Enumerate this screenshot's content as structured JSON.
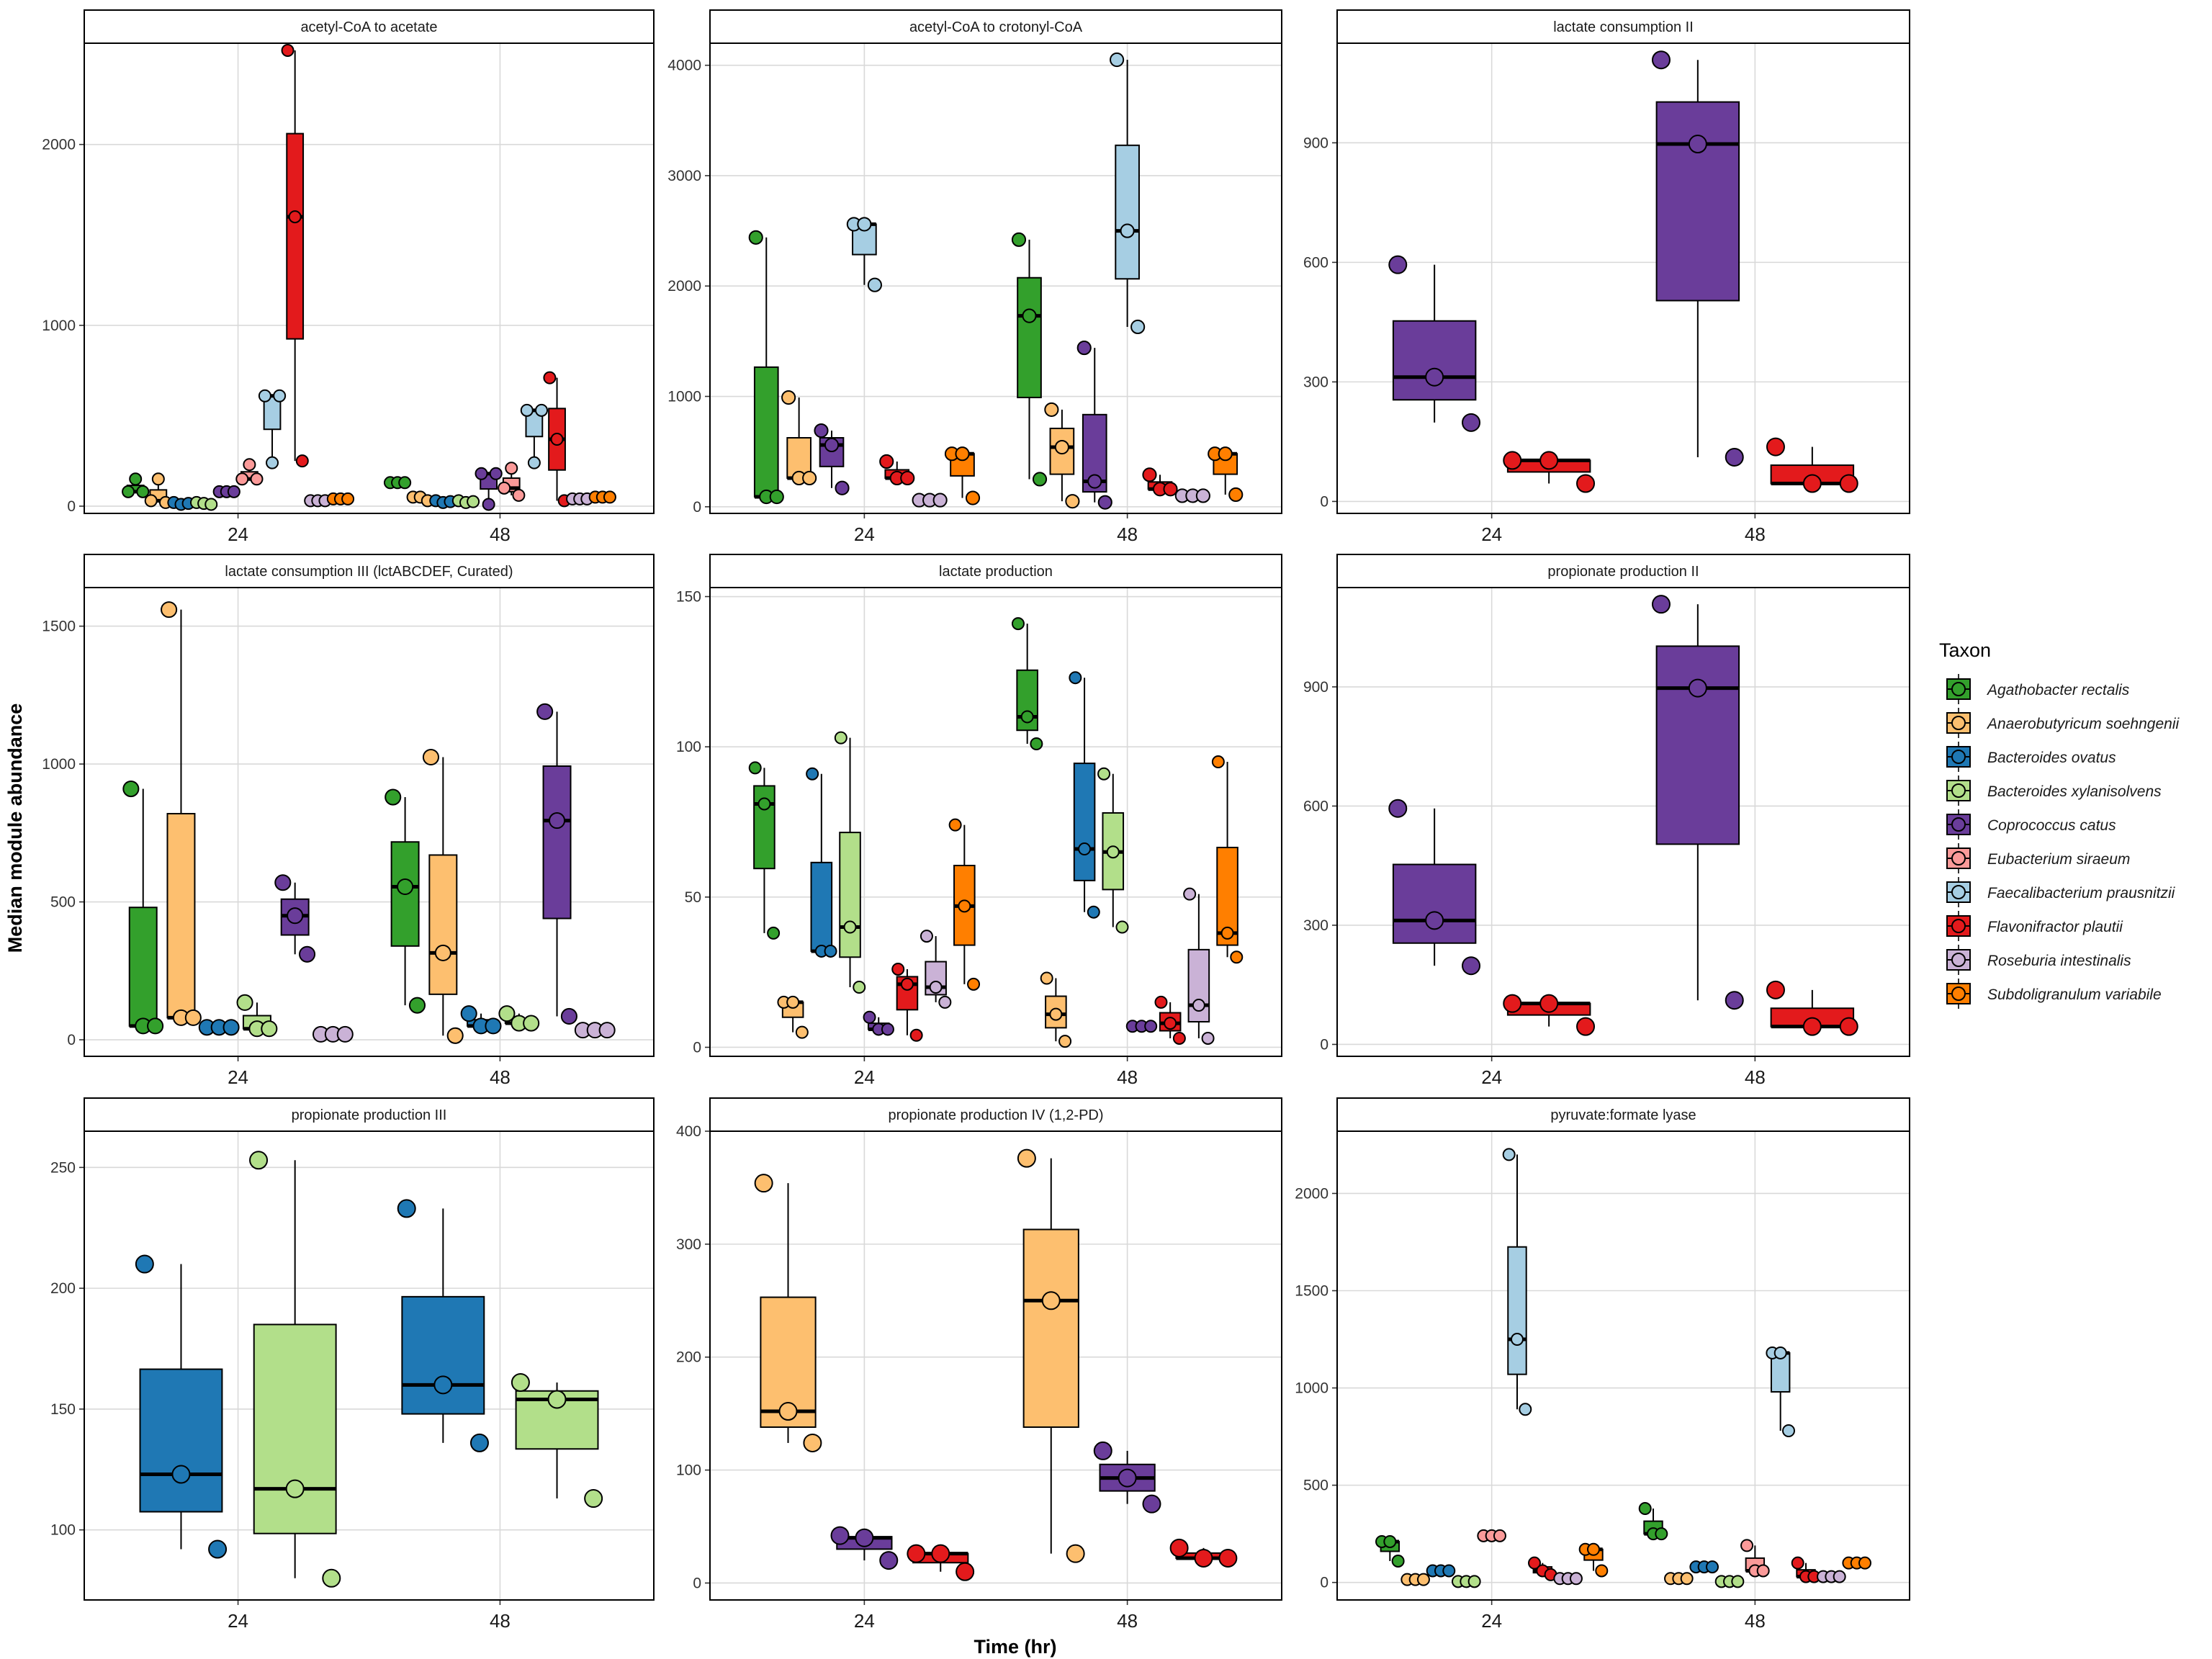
{
  "figure": {
    "ylabel": "Median module abundance",
    "xlabel": "Time (hr)",
    "legend_title": "Taxon",
    "legend_position": "right"
  },
  "taxa": [
    {
      "name": "Agathobacter rectalis",
      "color": "#33a02c"
    },
    {
      "name": "Anaerobutyricum soehngenii",
      "color": "#fdbf6f"
    },
    {
      "name": "Bacteroides ovatus",
      "color": "#1f78b4"
    },
    {
      "name": "Bacteroides xylanisolvens",
      "color": "#b2df8a"
    },
    {
      "name": "Coprococcus catus",
      "color": "#6a3d9a"
    },
    {
      "name": "Eubacterium siraeum",
      "color": "#fb9a99"
    },
    {
      "name": "Faecalibacterium prausnitzii",
      "color": "#a6cee3"
    },
    {
      "name": "Flavonifractor plautii",
      "color": "#e31a1c"
    },
    {
      "name": "Roseburia intestinalis",
      "color": "#cab2d6"
    },
    {
      "name": "Subdoligranulum variabile",
      "color": "#ff7f00"
    }
  ],
  "chart_data": [
    {
      "type": "box",
      "title": "acetyl-CoA to acetate",
      "categories": [
        "24",
        "48"
      ],
      "ylim": [
        -40,
        2560
      ],
      "yticks": [
        "0",
        "1000",
        "2000"
      ],
      "series": [
        {
          "taxon": 0,
          "points": [
            [
              80,
              150,
              80
            ],
            [
              130,
              130,
              130
            ]
          ]
        },
        {
          "taxon": 1,
          "points": [
            [
              30,
              150,
              20
            ],
            [
              50,
              50,
              30
            ]
          ]
        },
        {
          "taxon": 2,
          "points": [
            [
              20,
              10,
              15
            ],
            [
              30,
              20,
              25
            ]
          ]
        },
        {
          "taxon": 3,
          "points": [
            [
              20,
              15,
              10
            ],
            [
              30,
              20,
              25
            ]
          ]
        },
        {
          "taxon": 4,
          "points": [
            [
              80,
              80,
              80
            ],
            [
              180,
              10,
              180
            ]
          ]
        },
        {
          "taxon": 5,
          "points": [
            [
              150,
              230,
              150
            ],
            [
              100,
              210,
              60
            ]
          ]
        },
        {
          "taxon": 6,
          "points": [
            [
              610,
              240,
              610
            ],
            [
              530,
              240,
              530
            ]
          ]
        },
        {
          "taxon": 7,
          "points": [
            [
              2520,
              1600,
              250
            ],
            [
              710,
              370,
              30
            ]
          ]
        },
        {
          "taxon": 8,
          "points": [
            [
              30,
              30,
              30
            ],
            [
              40,
              40,
              40
            ]
          ]
        },
        {
          "taxon": 9,
          "points": [
            [
              40,
              40,
              40
            ],
            [
              50,
              50,
              50
            ]
          ]
        }
      ]
    },
    {
      "type": "box",
      "title": "acetyl-CoA to crotonyl-CoA",
      "categories": [
        "24",
        "48"
      ],
      "ylim": [
        -60,
        4200
      ],
      "yticks": [
        "0",
        "1000",
        "2000",
        "3000",
        "4000"
      ],
      "series": [
        {
          "taxon": 0,
          "points": [
            [
              2440,
              90,
              90
            ],
            [
              2420,
              1730,
              250
            ]
          ]
        },
        {
          "taxon": 1,
          "points": [
            [
              990,
              260,
              260
            ],
            [
              880,
              540,
              50
            ]
          ]
        },
        {
          "taxon": 4,
          "points": [
            [
              690,
              560,
              170
            ],
            [
              1440,
              230,
              40
            ]
          ]
        },
        {
          "taxon": 6,
          "points": [
            [
              2560,
              2560,
              2010
            ],
            [
              4050,
              2500,
              1630
            ]
          ]
        },
        {
          "taxon": 7,
          "points": [
            [
              410,
              260,
              260
            ],
            [
              290,
              160,
              160
            ]
          ]
        },
        {
          "taxon": 8,
          "points": [
            [
              60,
              60,
              60
            ],
            [
              100,
              100,
              100
            ]
          ]
        },
        {
          "taxon": 9,
          "points": [
            [
              480,
              480,
              80
            ],
            [
              480,
              480,
              110
            ]
          ]
        }
      ]
    },
    {
      "type": "box",
      "title": "lactate consumption II",
      "categories": [
        "24",
        "48"
      ],
      "ylim": [
        -30,
        1150
      ],
      "yticks": [
        "0",
        "300",
        "600",
        "900"
      ],
      "series": [
        {
          "taxon": 4,
          "points": [
            [
              594,
              312,
              198
            ],
            [
              1108,
              897,
              111
            ]
          ]
        },
        {
          "taxon": 7,
          "points": [
            [
              103,
              103,
              45
            ],
            [
              137,
              45,
              45
            ]
          ]
        }
      ]
    },
    {
      "type": "box",
      "title": "lactate consumption III (lctABCDEF, Curated)",
      "categories": [
        "24",
        "48"
      ],
      "ylim": [
        -60,
        1640
      ],
      "yticks": [
        "0",
        "500",
        "1000",
        "1500"
      ],
      "series": [
        {
          "taxon": 0,
          "points": [
            [
              910,
              50,
              50
            ],
            [
              880,
              555,
              125
            ]
          ]
        },
        {
          "taxon": 1,
          "points": [
            [
              1560,
              80,
              80
            ],
            [
              1025,
              315,
              15
            ]
          ]
        },
        {
          "taxon": 2,
          "points": [
            [
              45,
              45,
              45
            ],
            [
              95,
              50,
              50
            ]
          ]
        },
        {
          "taxon": 3,
          "points": [
            [
              135,
              40,
              40
            ],
            [
              95,
              60,
              60
            ]
          ]
        },
        {
          "taxon": 4,
          "points": [
            [
              570,
              450,
              310
            ],
            [
              1190,
              795,
              85
            ]
          ]
        },
        {
          "taxon": 8,
          "points": [
            [
              20,
              20,
              20
            ],
            [
              35,
              35,
              35
            ]
          ]
        }
      ]
    },
    {
      "type": "box",
      "title": "lactate production",
      "categories": [
        "24",
        "48"
      ],
      "ylim": [
        -3,
        153
      ],
      "yticks": [
        "0",
        "50",
        "100",
        "150"
      ],
      "series": [
        {
          "taxon": 0,
          "points": [
            [
              93,
              81,
              38
            ],
            [
              141,
              110,
              101
            ]
          ]
        },
        {
          "taxon": 1,
          "points": [
            [
              15,
              15,
              5
            ],
            [
              23,
              11,
              2
            ]
          ]
        },
        {
          "taxon": 2,
          "points": [
            [
              91,
              32,
              32
            ],
            [
              123,
              66,
              45
            ]
          ]
        },
        {
          "taxon": 3,
          "points": [
            [
              103,
              40,
              20
            ],
            [
              91,
              65,
              40
            ]
          ]
        },
        {
          "taxon": 4,
          "points": [
            [
              10,
              6,
              6
            ],
            [
              7,
              7,
              7
            ]
          ]
        },
        {
          "taxon": 7,
          "points": [
            [
              26,
              21,
              4
            ],
            [
              15,
              8,
              3
            ]
          ]
        },
        {
          "taxon": 8,
          "points": [
            [
              37,
              20,
              15
            ],
            [
              51,
              14,
              3
            ]
          ]
        },
        {
          "taxon": 9,
          "points": [
            [
              74,
              47,
              21
            ],
            [
              95,
              38,
              30
            ]
          ]
        }
      ]
    },
    {
      "type": "box",
      "title": "propionate production II",
      "categories": [
        "24",
        "48"
      ],
      "ylim": [
        -30,
        1150
      ],
      "yticks": [
        "0",
        "300",
        "600",
        "900"
      ],
      "series": [
        {
          "taxon": 4,
          "points": [
            [
              594,
              312,
              198
            ],
            [
              1108,
              897,
              111
            ]
          ]
        },
        {
          "taxon": 7,
          "points": [
            [
              103,
              103,
              45
            ],
            [
              137,
              45,
              45
            ]
          ]
        }
      ]
    },
    {
      "type": "box",
      "title": "propionate production III",
      "categories": [
        "24",
        "48"
      ],
      "ylim": [
        71,
        265
      ],
      "yticks": [
        "100",
        "150",
        "200",
        "250"
      ],
      "series": [
        {
          "taxon": 2,
          "points": [
            [
              210,
              123,
              92
            ],
            [
              233,
              160,
              136
            ]
          ]
        },
        {
          "taxon": 3,
          "points": [
            [
              253,
              117,
              80
            ],
            [
              161,
              154,
              113
            ]
          ]
        }
      ]
    },
    {
      "type": "box",
      "title": "propionate production IV (1,2-PD)",
      "categories": [
        "24",
        "48"
      ],
      "ylim": [
        -15,
        400
      ],
      "yticks": [
        "0",
        "100",
        "200",
        "300",
        "400"
      ],
      "series": [
        {
          "taxon": 1,
          "points": [
            [
              354,
              152,
              124
            ],
            [
              376,
              250,
              26
            ]
          ]
        },
        {
          "taxon": 4,
          "points": [
            [
              42,
              40,
              20
            ],
            [
              117,
              93,
              70
            ]
          ]
        },
        {
          "taxon": 7,
          "points": [
            [
              26,
              26,
              10
            ],
            [
              31,
              22,
              22
            ]
          ]
        }
      ]
    },
    {
      "type": "box",
      "title": "pyruvate:formate lyase",
      "categories": [
        "24",
        "48"
      ],
      "ylim": [
        -90,
        2320
      ],
      "yticks": [
        "0",
        "500",
        "1000",
        "1500",
        "2000"
      ],
      "series": [
        {
          "taxon": 0,
          "points": [
            [
              210,
              210,
              110
            ],
            [
              380,
              250,
              250
            ]
          ]
        },
        {
          "taxon": 1,
          "points": [
            [
              15,
              15,
              15
            ],
            [
              20,
              20,
              20
            ]
          ]
        },
        {
          "taxon": 2,
          "points": [
            [
              60,
              60,
              60
            ],
            [
              80,
              80,
              80
            ]
          ]
        },
        {
          "taxon": 3,
          "points": [
            [
              5,
              5,
              5
            ],
            [
              5,
              5,
              5
            ]
          ]
        },
        {
          "taxon": 5,
          "points": [
            [
              240,
              240,
              240
            ],
            [
              190,
              60,
              60
            ]
          ]
        },
        {
          "taxon": 6,
          "points": [
            [
              2200,
              1250,
              890
            ],
            [
              1180,
              1180,
              780
            ]
          ]
        },
        {
          "taxon": 7,
          "points": [
            [
              100,
              60,
              40
            ],
            [
              100,
              30,
              30
            ]
          ]
        },
        {
          "taxon": 8,
          "points": [
            [
              20,
              20,
              20
            ],
            [
              30,
              30,
              30
            ]
          ]
        },
        {
          "taxon": 9,
          "points": [
            [
              170,
              170,
              60
            ],
            [
              100,
              100,
              100
            ]
          ]
        }
      ]
    }
  ]
}
